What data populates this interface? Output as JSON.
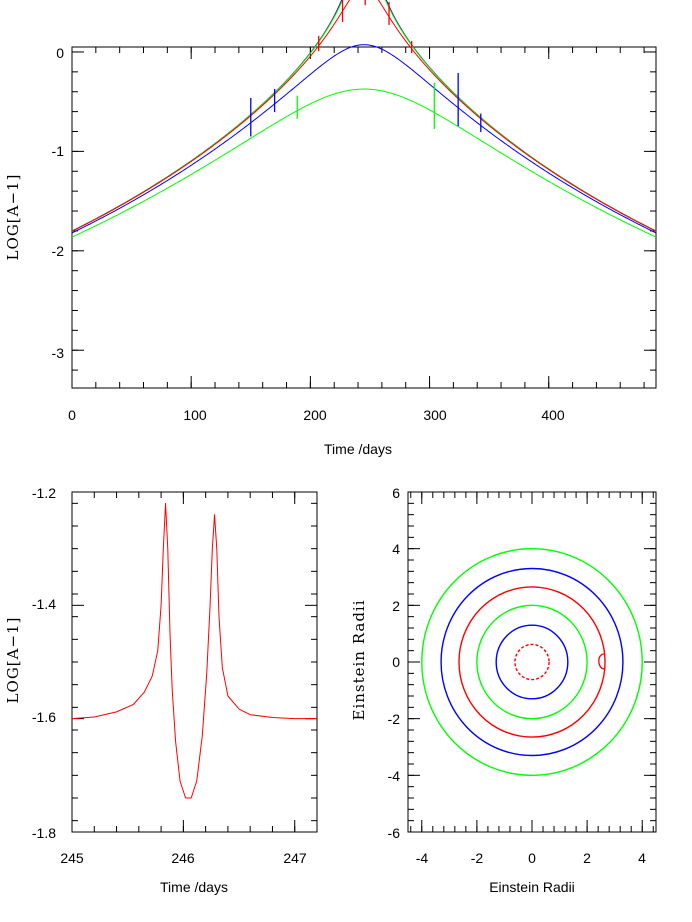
{
  "colors": {
    "red": "#ff0000",
    "blue": "#0000ff",
    "green": "#00ff00"
  },
  "chart_data": [
    {
      "type": "line",
      "xlabel": "Time /days",
      "ylabel": "LOG[A−1]",
      "xlim": [
        0,
        490
      ],
      "ylim": [
        -3.38,
        0.05
      ],
      "x_ticks": [
        "0",
        "100",
        "200",
        "300",
        "400"
      ],
      "y_ticks": [
        "0",
        "-1",
        "-2",
        "-3"
      ],
      "t0": 245,
      "series": [
        {
          "color": "#ff0000",
          "u0": 0.02,
          "tE": 80
        },
        {
          "color": "#0000ff",
          "u0": 0.04,
          "tE": 80
        },
        {
          "color": "#00ff00",
          "u0": 0.07,
          "tE": 80
        },
        {
          "color": "#ff0000",
          "u0": 0.18,
          "tE": 80,
          "spikes": [
            [
              207,
              0.1
            ],
            [
              227,
              0.2
            ],
            [
              246,
              0.35
            ],
            [
              266,
              0.15
            ],
            [
              285,
              0.08
            ]
          ]
        },
        {
          "color": "#0000ff",
          "u0": 0.5,
          "tE": 80,
          "spikes": [
            [
              150,
              0.25
            ],
            [
              170,
              0.15
            ],
            [
              324,
              0.35
            ],
            [
              343,
              0.12
            ]
          ]
        },
        {
          "color": "#00ff00",
          "u0": 0.9,
          "tE": 80,
          "spikes": [
            [
              189,
              0.15
            ],
            [
              304,
              0.3
            ]
          ]
        }
      ]
    },
    {
      "type": "line",
      "xlabel": "Time /days",
      "ylabel": "LOG[A−1]",
      "xlim": [
        245,
        247.2
      ],
      "ylim": [
        -1.8,
        -1.2
      ],
      "x_ticks": [
        "245",
        "246",
        "247"
      ],
      "y_ticks": [
        "-1.2",
        "-1.4",
        "-1.6",
        "-1.8"
      ],
      "series": [
        {
          "color": "#ff0000",
          "x": [
            245,
            245.2,
            245.4,
            245.55,
            245.65,
            245.72,
            245.77,
            245.8,
            245.82,
            245.84,
            245.86,
            245.88,
            245.9,
            245.93,
            245.97,
            246.02,
            246.07,
            246.12,
            246.17,
            246.21,
            246.24,
            246.26,
            246.28,
            246.3,
            246.32,
            246.35,
            246.4,
            246.5,
            246.6,
            246.8,
            247,
            247.2
          ],
          "y": [
            -1.6,
            -1.597,
            -1.588,
            -1.575,
            -1.553,
            -1.525,
            -1.48,
            -1.4,
            -1.3,
            -1.22,
            -1.3,
            -1.45,
            -1.55,
            -1.64,
            -1.71,
            -1.74,
            -1.74,
            -1.71,
            -1.63,
            -1.52,
            -1.4,
            -1.3,
            -1.24,
            -1.3,
            -1.42,
            -1.51,
            -1.56,
            -1.583,
            -1.593,
            -1.598,
            -1.6,
            -1.6
          ]
        }
      ]
    },
    {
      "type": "line",
      "xlabel": "Einstein Radii",
      "ylabel": "Einstein Radii",
      "xlim": [
        -4.5,
        4.5
      ],
      "ylim": [
        -6,
        6
      ],
      "x_ticks": [
        "-4",
        "-2",
        "0",
        "2",
        "4"
      ],
      "y_ticks": [
        "6",
        "4",
        "2",
        "0",
        "-2",
        "-4",
        "-6"
      ],
      "circles": [
        {
          "r": 4.0,
          "color": "#00ff00"
        },
        {
          "r": 3.3,
          "color": "#0000ff",
          "gap_near_x": 3.3
        },
        {
          "r": 2.65,
          "color": "#ff0000",
          "bump_at_x": 2.65
        },
        {
          "r": 2.0,
          "color": "#00ff00"
        },
        {
          "r": 1.3,
          "color": "#0000ff"
        },
        {
          "r": 0.62,
          "color": "#ff0000",
          "dashed": true
        }
      ]
    }
  ]
}
